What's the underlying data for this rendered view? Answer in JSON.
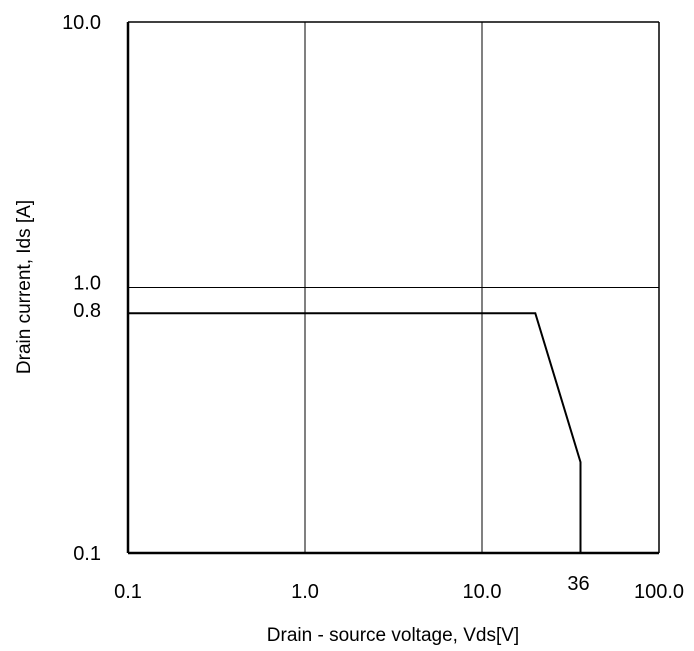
{
  "chart_data": {
    "type": "line",
    "x_scale": "log",
    "y_scale": "log",
    "xlabel": "Drain - source voltage, Vds[V]",
    "ylabel": "Drain current, Ids [A]",
    "xlim": [
      0.1,
      100.0
    ],
    "ylim": [
      0.1,
      10.0
    ],
    "x_ticks": [
      {
        "value": 0.1,
        "label": "0.1"
      },
      {
        "value": 1.0,
        "label": "1.0"
      },
      {
        "value": 10.0,
        "label": "10.0"
      },
      {
        "value": 36,
        "label": "36"
      },
      {
        "value": 100.0,
        "label": "100.0"
      }
    ],
    "y_ticks": [
      {
        "value": 0.1,
        "label": "0.1"
      },
      {
        "value": 0.8,
        "label": "0.8"
      },
      {
        "value": 1.0,
        "label": "1.0"
      },
      {
        "value": 10.0,
        "label": "10.0"
      }
    ],
    "grid": true,
    "series": [
      {
        "x": [
          0.1,
          20,
          36,
          36
        ],
        "y": [
          0.8,
          0.8,
          0.22,
          0.1
        ]
      }
    ]
  }
}
